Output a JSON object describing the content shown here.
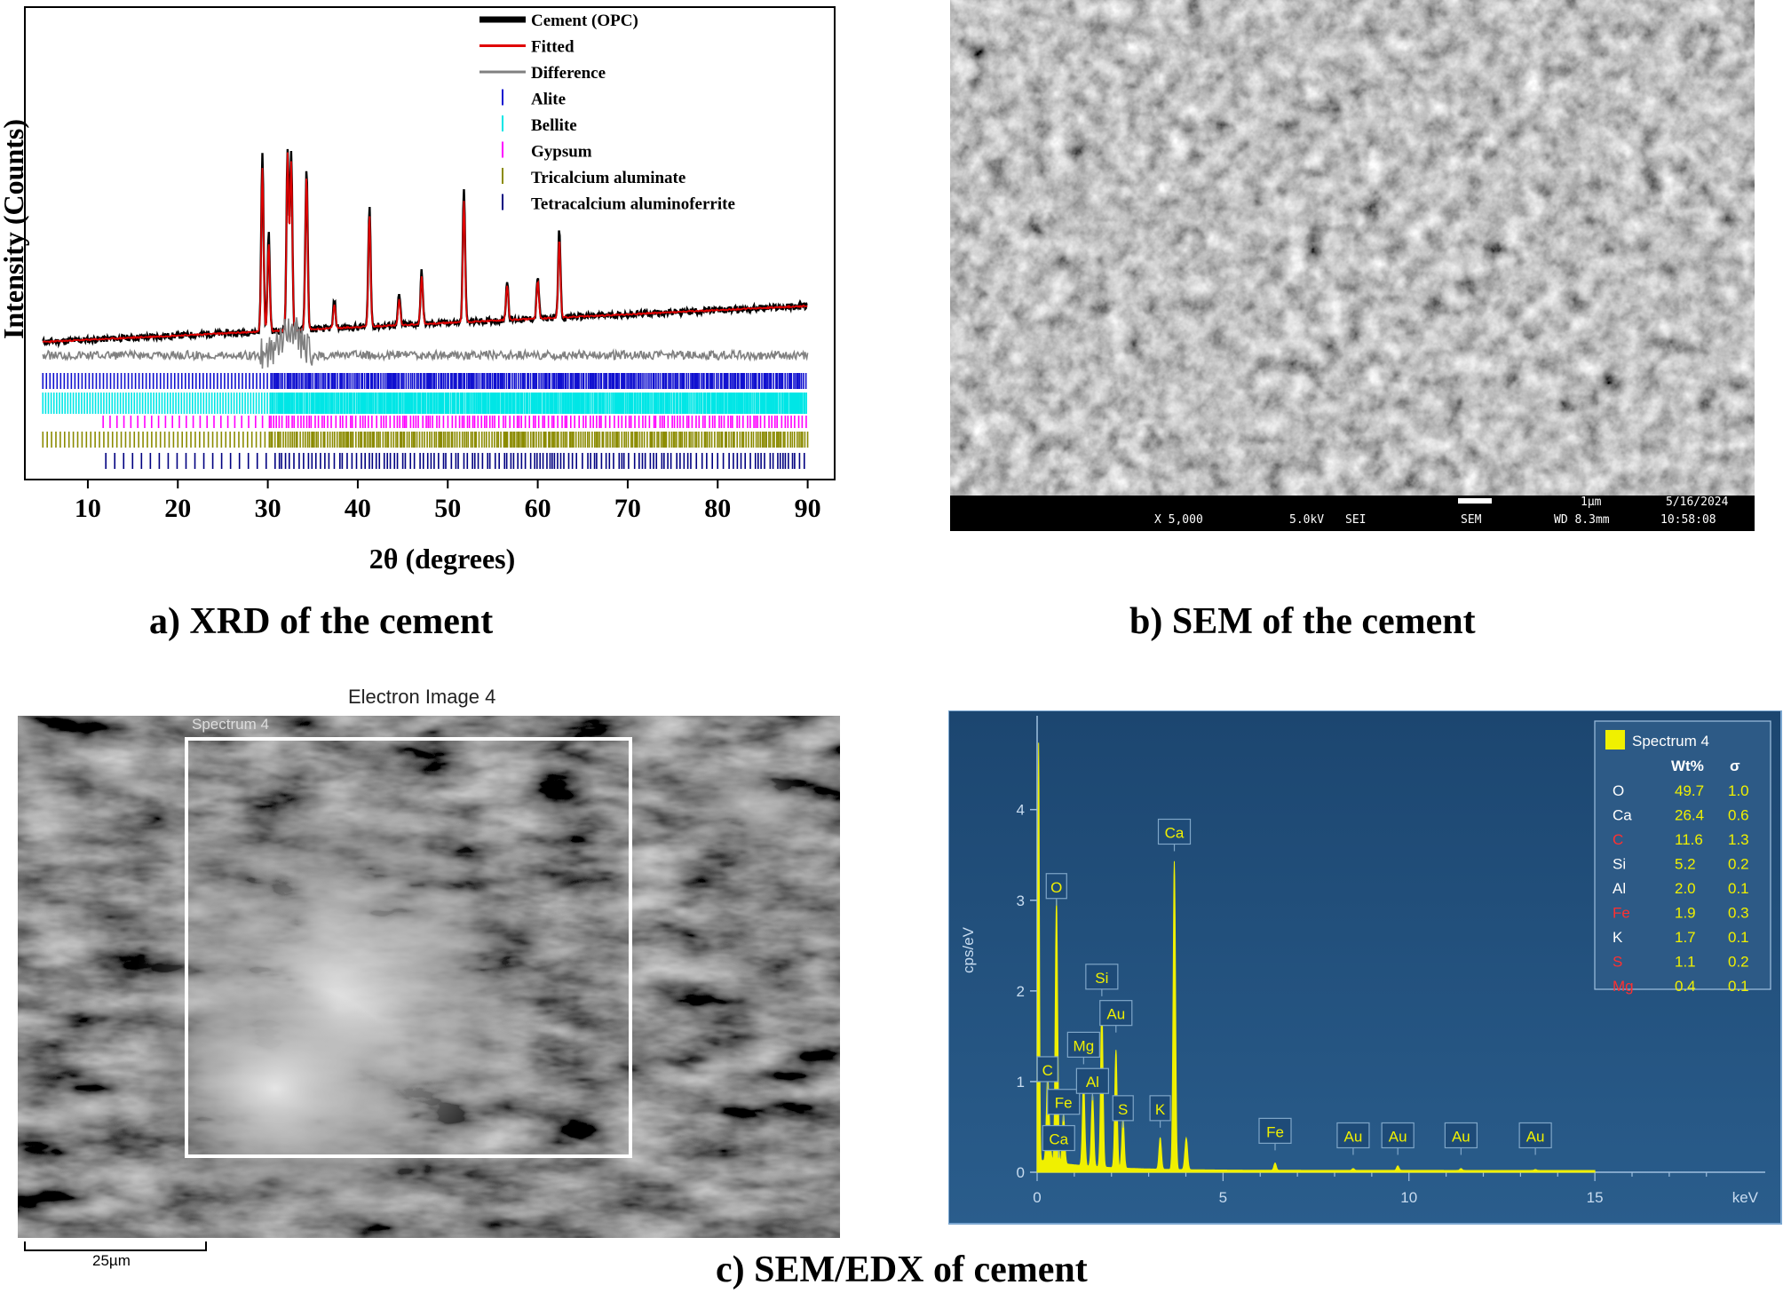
{
  "captions": {
    "a": "a) XRD of the cement",
    "b": "b) SEM of the cement",
    "c": "c) SEM/EDX of cement"
  },
  "chart_data": [
    {
      "type": "line",
      "ylabel": "Intensity (Counts)",
      "xlabel": "2θ (degrees)",
      "xlim": [
        3,
        93
      ],
      "x_ticks": [
        10,
        20,
        30,
        40,
        50,
        60,
        70,
        80,
        90
      ],
      "legend": [
        "Cement (OPC)",
        "Fitted",
        "Difference",
        "Alite",
        "Bellite",
        "Gypsum",
        "Tricalcium aluminate",
        "Tetracalcium aluminoferrite"
      ],
      "legend_position": "top-right",
      "colors": {
        "observed": "#000000",
        "fitted": "#e00000",
        "difference": "#808080",
        "alite": "#1010d0",
        "bellite": "#00e6e6",
        "gypsum": "#ff00ff",
        "c3a": "#8b8b00",
        "c4af": "#000080"
      },
      "series": [
        {
          "name": "Cement (OPC)",
          "x": [
            5,
            11.7,
            15,
            23,
            29.4,
            30.1,
            32.2,
            32.6,
            34.3,
            37.4,
            41.3,
            44.6,
            47.1,
            51.8,
            56.6,
            60.0,
            62.4,
            72,
            80,
            90
          ],
          "y": [
            70,
            82,
            84,
            88,
            470,
            300,
            480,
            470,
            440,
            160,
            360,
            170,
            220,
            400,
            200,
            210,
            310,
            120,
            140,
            160
          ]
        },
        {
          "name": "Fitted",
          "x": [
            5,
            11.7,
            15,
            23,
            29.4,
            30.1,
            32.2,
            32.6,
            34.3,
            37.4,
            41.3,
            44.6,
            47.1,
            51.8,
            56.6,
            60.0,
            62.4,
            72,
            80,
            90
          ],
          "y": [
            70,
            80,
            82,
            86,
            440,
            280,
            470,
            450,
            420,
            150,
            340,
            160,
            210,
            370,
            190,
            200,
            290,
            115,
            135,
            150
          ]
        },
        {
          "name": "Difference",
          "x": [
            5,
            30,
            32.5,
            34,
            50,
            90
          ],
          "y": [
            0,
            40,
            50,
            30,
            5,
            0
          ]
        }
      ],
      "reflection_ticks": [
        {
          "name": "Alite",
          "x_start": 5,
          "x_end": 90
        },
        {
          "name": "Bellite",
          "x_start": 5,
          "x_end": 90
        },
        {
          "name": "Gypsum",
          "x_start": 11.7,
          "x_end": 90
        },
        {
          "name": "Tricalcium aluminate",
          "x_start": 5,
          "x_end": 90
        },
        {
          "name": "Tetracalcium aluminoferrite",
          "x_start": 12,
          "x_end": 90
        }
      ]
    },
    {
      "type": "bar",
      "ylabel": "cps/eV",
      "xlabel": "keV",
      "xlim": [
        0,
        20
      ],
      "ylim": [
        0,
        4.8
      ],
      "x_ticks": [
        0,
        5,
        10,
        15
      ],
      "y_ticks": [
        0,
        1,
        2,
        3,
        4
      ],
      "peaks": [
        {
          "label": "C",
          "x": 0.28,
          "y": 0.9
        },
        {
          "label": "O",
          "x": 0.52,
          "y": 2.9
        },
        {
          "label": "Ca",
          "x": 0.34,
          "y": 0.25
        },
        {
          "label": "Fe",
          "x": 0.71,
          "y": 0.55
        },
        {
          "label": "Mg",
          "x": 1.25,
          "y": 0.95
        },
        {
          "label": "Al",
          "x": 1.49,
          "y": 0.8
        },
        {
          "label": "Si",
          "x": 1.74,
          "y": 1.8
        },
        {
          "label": "Au",
          "x": 2.12,
          "y": 1.3
        },
        {
          "label": "S",
          "x": 2.31,
          "y": 0.55
        },
        {
          "label": "K",
          "x": 3.31,
          "y": 0.35
        },
        {
          "label": "Ca",
          "x": 3.69,
          "y": 3.4
        },
        {
          "label": "Fe",
          "x": 6.4,
          "y": 0.08
        },
        {
          "label": "Au",
          "x": 8.5,
          "y": 0.02
        },
        {
          "label": "Au",
          "x": 9.7,
          "y": 0.05
        },
        {
          "label": "Au",
          "x": 11.4,
          "y": 0.02
        },
        {
          "label": "Au",
          "x": 13.4,
          "y": 0.01
        }
      ],
      "legend_title": "Spectrum 4",
      "table_headers": [
        "Wt%",
        "σ"
      ],
      "composition": [
        {
          "element": "O",
          "wt": "49.7",
          "sigma": "1.0",
          "color": "#ffffff"
        },
        {
          "element": "Ca",
          "wt": "26.4",
          "sigma": "0.6",
          "color": "#ffffff"
        },
        {
          "element": "C",
          "wt": "11.6",
          "sigma": "1.3",
          "color": "#ff3030"
        },
        {
          "element": "Si",
          "wt": "5.2",
          "sigma": "0.2",
          "color": "#ffffff"
        },
        {
          "element": "Al",
          "wt": "2.0",
          "sigma": "0.1",
          "color": "#ffffff"
        },
        {
          "element": "Fe",
          "wt": "1.9",
          "sigma": "0.3",
          "color": "#ff3030"
        },
        {
          "element": "K",
          "wt": "1.7",
          "sigma": "0.1",
          "color": "#ffffff"
        },
        {
          "element": "S",
          "wt": "1.1",
          "sigma": "0.2",
          "color": "#ff3030"
        },
        {
          "element": "Mg",
          "wt": "0.4",
          "sigma": "0.1",
          "color": "#ff3030"
        }
      ]
    }
  ],
  "sem": {
    "magnification": "X 5,000",
    "voltage": "5.0kV",
    "mode": "SEI",
    "detector": "SEM",
    "scale": "1µm",
    "date": "5/16/2024",
    "wd": "WD 8.3mm",
    "time": "10:58:08"
  },
  "electron_image": {
    "title": "Electron Image 4",
    "spectrum_label": "Spectrum 4",
    "scale": "25µm"
  }
}
